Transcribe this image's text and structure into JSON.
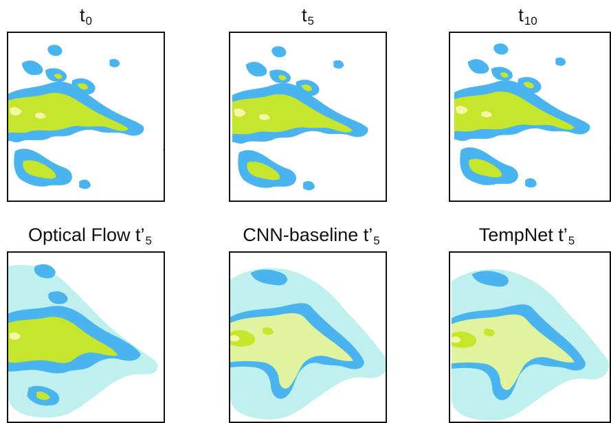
{
  "figure": {
    "colors": {
      "background": "#ffffff",
      "frame": "#111111",
      "light_cyan": "#bff0ee",
      "blue": "#4ab4ee",
      "pale_yellow_green": "#e2f3a0",
      "yellow_green": "#c6e62e",
      "light_yellow": "#f4f7a4"
    },
    "top_row": [
      {
        "label": "t",
        "subscript": "0"
      },
      {
        "label": "t",
        "subscript": "5"
      },
      {
        "label": "t",
        "subscript": "10"
      }
    ],
    "bottom_row": [
      {
        "label": "Optical Flow t’",
        "subscript": "5"
      },
      {
        "label": "CNN-baseline t’",
        "subscript": "5"
      },
      {
        "label": "TempNet t’",
        "subscript": "5"
      }
    ]
  }
}
